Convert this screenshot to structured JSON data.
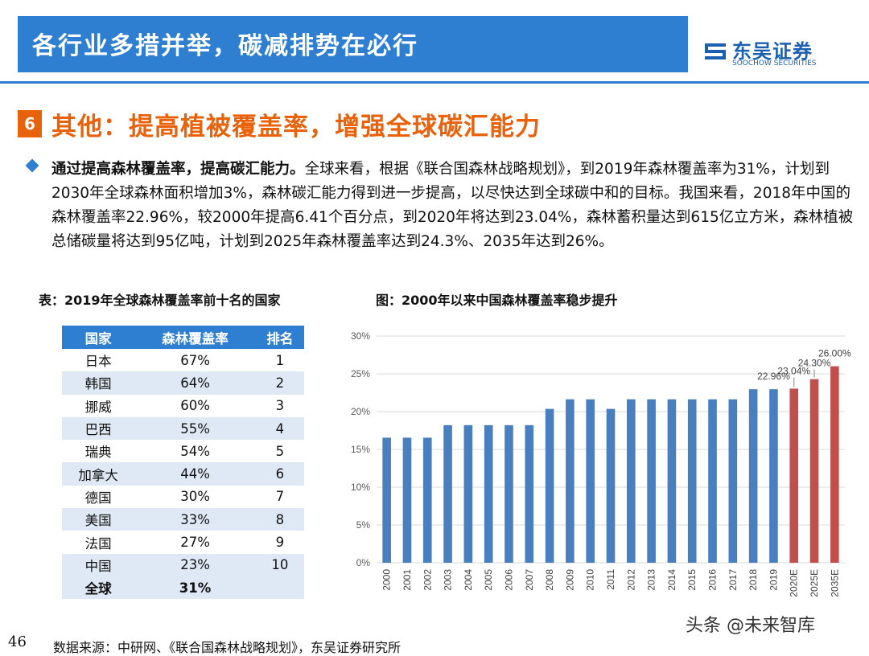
{
  "header": {
    "title": "各行业多措并举，碳减排势在必行"
  },
  "logo": {
    "cn": "东吴证券",
    "en": "SOOCHOW SECURITIES"
  },
  "section": {
    "number": "6",
    "title": "其他：提高植被覆盖率，增强全球碳汇能力"
  },
  "paragraph": {
    "lead": "通过提高森林覆盖率，提高碳汇能力。",
    "body": "全球来看，根据《联合国森林战略规划》，到2019年森林覆盖率为31%，计划到2030年全球森林面积增加3%，森林碳汇能力得到进一步提高，以尽快达到全球碳中和的目标。我国来看，2018年中国的森林覆盖率22.96%，较2000年提高6.41个百分点，到2020年将达到23.04%，森林蓄积量达到615亿立方米，森林植被总储碳量将达到95亿吨，计划到2025年森林覆盖率达到24.3%、2035年达到26%。"
  },
  "table": {
    "caption": "表：2019年全球森林覆盖率前十名的国家",
    "headers": [
      "国家",
      "森林覆盖率",
      "排名"
    ],
    "rows": [
      [
        "日本",
        "67%",
        "1"
      ],
      [
        "韩国",
        "64%",
        "2"
      ],
      [
        "挪威",
        "60%",
        "3"
      ],
      [
        "巴西",
        "55%",
        "4"
      ],
      [
        "瑞典",
        "54%",
        "5"
      ],
      [
        "加拿大",
        "44%",
        "6"
      ],
      [
        "德国",
        "30%",
        "7"
      ],
      [
        "美国",
        "33%",
        "8"
      ],
      [
        "法国",
        "27%",
        "9"
      ],
      [
        "中国",
        "23%",
        "10"
      ]
    ],
    "total": [
      "全球",
      "31%",
      ""
    ]
  },
  "chart_caption": "图：2000年以来中国森林覆盖率稳步提升",
  "chart_data": {
    "type": "bar",
    "categories": [
      "2000",
      "2001",
      "2002",
      "2003",
      "2004",
      "2005",
      "2006",
      "2007",
      "2008",
      "2009",
      "2010",
      "2011",
      "2012",
      "2013",
      "2014",
      "2015",
      "2016",
      "2017",
      "2018",
      "2019",
      "2020E",
      "2025E",
      "2035E"
    ],
    "values": [
      16.55,
      16.55,
      16.55,
      18.21,
      18.21,
      18.21,
      18.21,
      18.21,
      20.36,
      21.63,
      21.63,
      20.36,
      21.63,
      21.63,
      21.63,
      21.63,
      21.63,
      21.63,
      22.96,
      22.96,
      23.04,
      24.3,
      26.0
    ],
    "ylim": [
      0,
      30
    ],
    "yticks": [
      "0%",
      "5%",
      "10%",
      "15%",
      "20%",
      "25%",
      "30%"
    ],
    "data_labels": [
      {
        "index": 19,
        "text": "22.96%"
      },
      {
        "index": 20,
        "text": "23.04%"
      },
      {
        "index": 21,
        "text": "24.30%"
      },
      {
        "index": 22,
        "text": "26.00%"
      }
    ],
    "colors": {
      "actual": "#4a7fbf",
      "estimate": "#c0504d",
      "grid": "#d9d9d9"
    },
    "estimate_start_index": 20,
    "grid": true
  },
  "footer": {
    "page": "46",
    "source": "数据来源：中研网、《联合国森林战略规划》，东吴证券研究所"
  },
  "watermark": "头条 @未来智库"
}
